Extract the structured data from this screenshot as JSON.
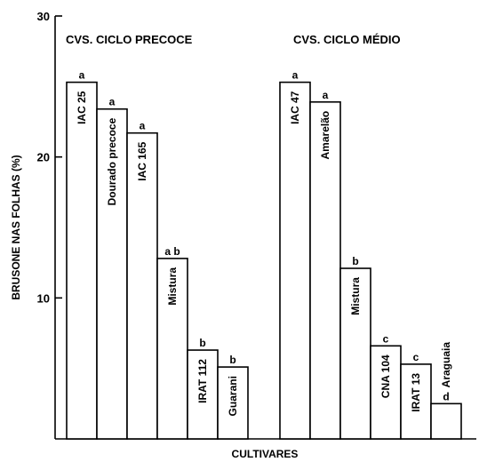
{
  "chart_data": {
    "type": "bar",
    "title": "",
    "xlabel": "CULTIVARES",
    "ylabel": "BRUSONE NAS FOLHAS (%)",
    "ylim": [
      0,
      30
    ],
    "yticks": [
      10,
      20,
      30
    ],
    "grid": false,
    "legend": "none",
    "groups": [
      {
        "title": "CVS. CICLO PRECOCE",
        "bars": [
          {
            "label": "IAC 25",
            "value": 25.3,
            "sig": "a"
          },
          {
            "label": "Dourado precoce",
            "value": 23.4,
            "sig": "a"
          },
          {
            "label": "IAC 165",
            "value": 21.7,
            "sig": "a"
          },
          {
            "label": "Mistura",
            "value": 12.8,
            "sig": "a b"
          },
          {
            "label": "IRAT 112",
            "value": 6.3,
            "sig": "b"
          },
          {
            "label": "Guarani",
            "value": 5.1,
            "sig": "b"
          }
        ]
      },
      {
        "title": "CVS. CICLO MÉDIO",
        "bars": [
          {
            "label": "IAC 47",
            "value": 25.3,
            "sig": "a"
          },
          {
            "label": "Amarelão",
            "value": 23.9,
            "sig": "a"
          },
          {
            "label": "Mistura",
            "value": 12.1,
            "sig": "b"
          },
          {
            "label": "CNA 104",
            "value": 6.6,
            "sig": "c"
          },
          {
            "label": "IRAT 13",
            "value": 5.3,
            "sig": "c"
          },
          {
            "label": "Araguaia",
            "value": 2.5,
            "sig": "d"
          }
        ]
      }
    ]
  }
}
